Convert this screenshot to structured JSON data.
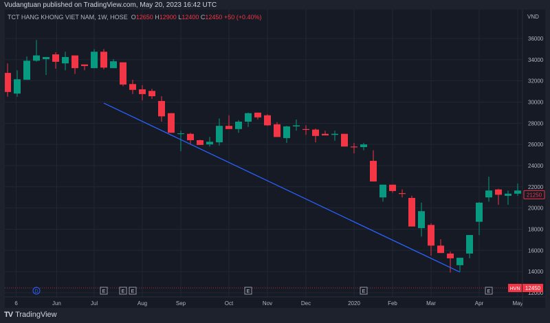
{
  "published": "Vudangtuan published on TradingView.com, May 20, 2023 16:42 UTC",
  "legend": {
    "symbol": "TCT HANG KHONG VIET NAM, 1W, HOSE",
    "o_label": "O",
    "o": "12650",
    "h_label": "H",
    "h": "12900",
    "l_label": "L",
    "l": "12400",
    "c_label": "C",
    "c": "12450",
    "change": "+50 (+0.40%)"
  },
  "currency": "VND",
  "footer": {
    "logo": "TV",
    "brand": "TradingView"
  },
  "colors": {
    "up": "#089981",
    "down": "#f23645",
    "trendline": "#2962ff",
    "grid": "#232733"
  },
  "chart_data": {
    "type": "candlestick",
    "yticks": [
      36000,
      34000,
      32000,
      30000,
      28000,
      26000,
      24000,
      22000,
      20000,
      18000,
      16000,
      14000,
      12000
    ],
    "ylim": [
      12000,
      36000
    ],
    "xticks": [
      {
        "label": "6",
        "index": 0.9
      },
      {
        "label": "Jun",
        "index": 5.1
      },
      {
        "label": "Jul",
        "index": 9
      },
      {
        "label": "Aug",
        "index": 14
      },
      {
        "label": "Sep",
        "index": 18
      },
      {
        "label": "Oct",
        "index": 23
      },
      {
        "label": "Nov",
        "index": 27
      },
      {
        "label": "Dec",
        "index": 31
      },
      {
        "label": "2020",
        "index": 36
      },
      {
        "label": "Feb",
        "index": 40
      },
      {
        "label": "Mar",
        "index": 44
      },
      {
        "label": "Apr",
        "index": 49
      },
      {
        "label": "May",
        "index": 53
      }
    ],
    "candles": [
      [
        32750,
        33650,
        30500,
        30950
      ],
      [
        30800,
        33000,
        30500,
        32150
      ],
      [
        32100,
        34300,
        32100,
        33900
      ],
      [
        33900,
        35850,
        33800,
        34400
      ],
      [
        34050,
        34250,
        32550,
        34250
      ],
      [
        34500,
        34700,
        33150,
        33800
      ],
      [
        33650,
        34750,
        33000,
        34250
      ],
      [
        34400,
        34400,
        32650,
        33200
      ],
      [
        33550,
        33550,
        33000,
        33400
      ],
      [
        33200,
        35000,
        33200,
        34750
      ],
      [
        34750,
        35000,
        33100,
        33250
      ],
      [
        33200,
        34050,
        33200,
        33850
      ],
      [
        33750,
        33750,
        31500,
        31650
      ],
      [
        31700,
        32100,
        30750,
        31150
      ],
      [
        31200,
        31600,
        30150,
        30750
      ],
      [
        31050,
        31250,
        30300,
        30550
      ],
      [
        30100,
        30550,
        28150,
        28650
      ],
      [
        28950,
        28950,
        27100,
        27100
      ],
      [
        27000,
        27300,
        25350,
        27050
      ],
      [
        27000,
        27100,
        26000,
        26400
      ],
      [
        26400,
        26450,
        25950,
        25950
      ],
      [
        26000,
        26700,
        25800,
        26250
      ],
      [
        26200,
        28450,
        25900,
        27750
      ],
      [
        27750,
        28750,
        27450,
        27450
      ],
      [
        27450,
        28300,
        27100,
        28150
      ],
      [
        28150,
        29000,
        27650,
        28950
      ],
      [
        29000,
        29000,
        28350,
        28550
      ],
      [
        28750,
        28850,
        27750,
        27800
      ],
      [
        27900,
        28100,
        26700,
        26700
      ],
      [
        26600,
        27750,
        26150,
        27700
      ],
      [
        27700,
        28350,
        27300,
        27800
      ],
      [
        27450,
        27800,
        26900,
        27400
      ],
      [
        27400,
        27500,
        26200,
        26800
      ],
      [
        27000,
        27300,
        26850,
        26850
      ],
      [
        26900,
        27300,
        26350,
        27000
      ],
      [
        27000,
        27000,
        25800,
        25800
      ],
      [
        25800,
        26150,
        25150,
        25750
      ],
      [
        25750,
        26150,
        25450,
        26000
      ],
      [
        24450,
        25450,
        22500,
        22500
      ],
      [
        21000,
        22200,
        20600,
        22200
      ],
      [
        22200,
        22200,
        21450,
        21600
      ],
      [
        21400,
        21750,
        21000,
        21350
      ],
      [
        20950,
        21150,
        18250,
        18250
      ],
      [
        18100,
        20500,
        17300,
        19700
      ],
      [
        18400,
        18550,
        15500,
        16450
      ],
      [
        16450,
        17050,
        15750,
        15750
      ],
      [
        15700,
        15900,
        13900,
        15250
      ],
      [
        14600,
        15300,
        14000,
        15300
      ],
      [
        15700,
        17450,
        15250,
        17450
      ],
      [
        18700,
        20550,
        17450,
        20500
      ],
      [
        21000,
        22950,
        20600,
        21650
      ],
      [
        21750,
        21800,
        20300,
        21250
      ],
      [
        21150,
        21650,
        20300,
        21350
      ],
      [
        21350,
        22300,
        21150,
        21650
      ]
    ],
    "trendline": {
      "from": {
        "index": 10,
        "price": 29900
      },
      "to": {
        "index": 47,
        "price": 13950
      }
    },
    "price_labels": [
      {
        "text": "21250",
        "price": 21250,
        "style": "outline"
      },
      {
        "symbol": "HVN",
        "text": "12450",
        "price": 12450,
        "style": "filled"
      }
    ],
    "events": [
      {
        "type": "D",
        "index": 3
      },
      {
        "type": "E",
        "index": 10
      },
      {
        "type": "E",
        "index": 12
      },
      {
        "type": "E",
        "index": 13
      },
      {
        "type": "E",
        "index": 25
      },
      {
        "type": "E",
        "index": 37
      },
      {
        "type": "E",
        "index": 50
      }
    ]
  }
}
